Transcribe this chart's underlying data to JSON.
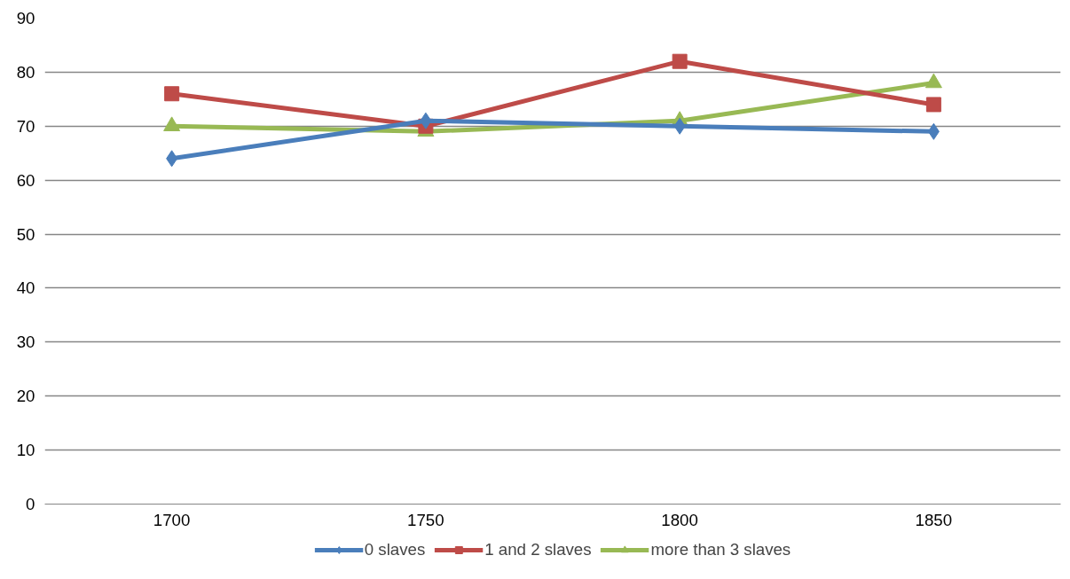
{
  "chart_data": {
    "type": "line",
    "categories": [
      "1700",
      "1750",
      "1800",
      "1850"
    ],
    "series": [
      {
        "name": "0 slaves",
        "color": "#4a7ebb",
        "marker": "diamond",
        "values": [
          64,
          71,
          70,
          69
        ]
      },
      {
        "name": "1 and 2 slaves",
        "color": "#be4b48",
        "marker": "square",
        "values": [
          76,
          70,
          82,
          74
        ]
      },
      {
        "name": "more than 3 slaves",
        "color": "#98b954",
        "marker": "triangle",
        "values": [
          70,
          69,
          71,
          78
        ]
      }
    ],
    "ylim": [
      0,
      90
    ],
    "yticks": [
      0,
      10,
      20,
      30,
      40,
      50,
      60,
      70,
      80,
      90
    ],
    "grid": "y",
    "legend": "bottom",
    "line_style": "solid"
  }
}
